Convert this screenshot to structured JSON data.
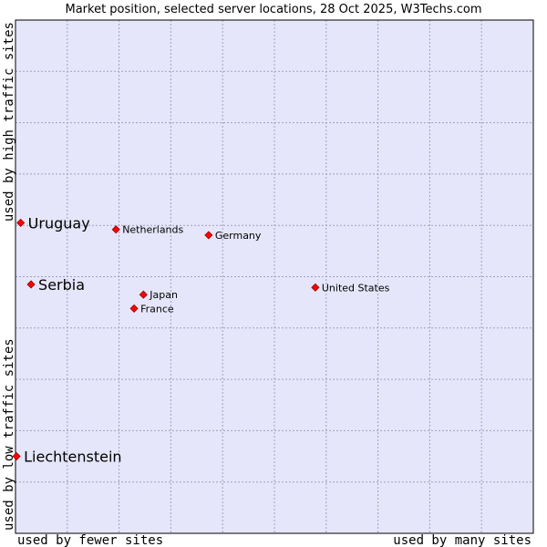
{
  "chart_data": {
    "type": "scatter",
    "title": "Market position, selected server locations, 28 Oct 2025, W3Techs.com",
    "xlabel_left": "used by fewer sites",
    "xlabel_right": "used by many sites",
    "ylabel_bottom": "used by low traffic sites",
    "ylabel_top": "used by high traffic sites",
    "xlim": [
      0,
      100
    ],
    "ylim": [
      0,
      100
    ],
    "grid": true,
    "colors": {
      "background": "#e6e6fa",
      "grid": "#a0a0c0",
      "point": "#ff0000",
      "point_outline": "#990000",
      "text": "#000000"
    },
    "points": [
      {
        "label": "Uruguay",
        "x": 1.0,
        "y": 60.5,
        "emphasis": true
      },
      {
        "label": "Serbia",
        "x": 3.0,
        "y": 48.5,
        "emphasis": true
      },
      {
        "label": "Liechtenstein",
        "x": 0.2,
        "y": 15.0,
        "emphasis": true
      },
      {
        "label": "Netherlands",
        "x": 19.4,
        "y": 59.2,
        "emphasis": false
      },
      {
        "label": "Germany",
        "x": 37.3,
        "y": 58.1,
        "emphasis": false
      },
      {
        "label": "Japan",
        "x": 24.7,
        "y": 46.5,
        "emphasis": false
      },
      {
        "label": "France",
        "x": 22.9,
        "y": 43.8,
        "emphasis": false
      },
      {
        "label": "United States",
        "x": 57.9,
        "y": 47.9,
        "emphasis": false
      }
    ]
  }
}
